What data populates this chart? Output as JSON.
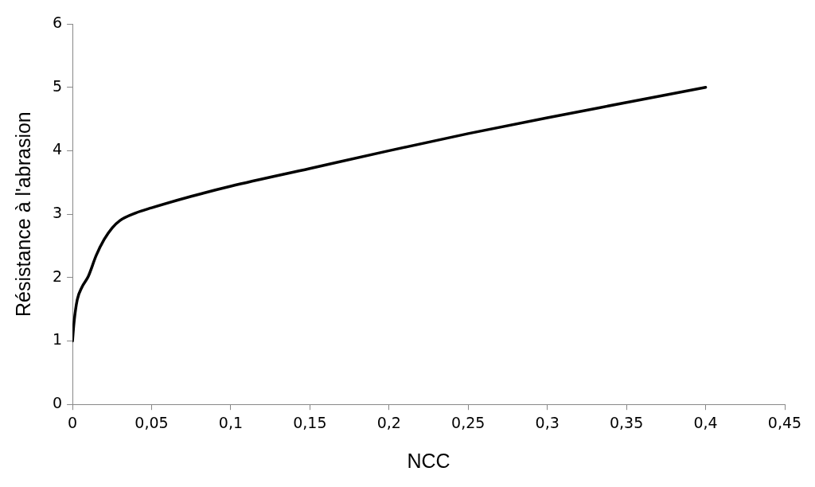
{
  "chart_data": {
    "type": "line",
    "xlabel": "NCC",
    "ylabel": "Résistance à l'abrasion",
    "x": [
      0,
      0.001,
      0.003,
      0.006,
      0.01,
      0.015,
      0.02,
      0.025,
      0.03,
      0.04,
      0.05,
      0.075,
      0.1,
      0.15,
      0.2,
      0.25,
      0.3,
      0.35,
      0.4
    ],
    "series": [
      {
        "color": "#000000",
        "values": [
          1,
          1.3,
          1.65,
          1.85,
          2.02,
          2.35,
          2.6,
          2.78,
          2.9,
          3.02,
          3.1,
          3.28,
          3.44,
          3.72,
          4.0,
          4.27,
          4.52,
          4.76,
          5.0
        ]
      }
    ],
    "xlim": [
      0,
      0.45
    ],
    "xticks": [
      0,
      {
        "value": 0.05,
        "label": "0,05"
      },
      {
        "value": 0.1,
        "label": "0,1"
      },
      {
        "value": 0.15,
        "label": "0,15"
      },
      {
        "value": 0.2,
        "label": "0,2"
      },
      {
        "value": 0.25,
        "label": "0,25"
      },
      {
        "value": 0.3,
        "label": "0,3"
      },
      {
        "value": 0.35,
        "label": "0,35"
      },
      {
        "value": 0.4,
        "label": "0,4"
      },
      {
        "value": 0.45,
        "label": "0,45"
      }
    ],
    "ylim": [
      0,
      6
    ],
    "yticks": [
      0,
      1,
      2,
      3,
      4,
      5,
      6
    ],
    "grid": false,
    "legend": false,
    "marker": "none",
    "line_style": "solid"
  }
}
